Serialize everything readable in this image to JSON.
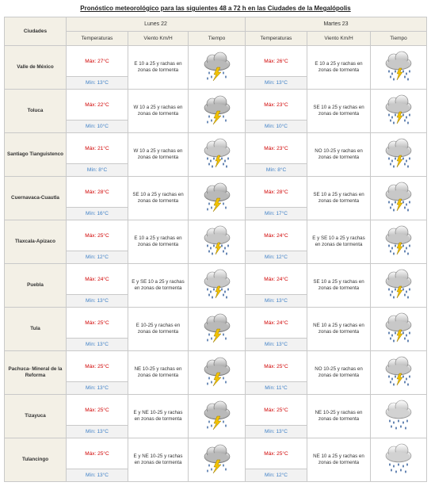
{
  "title": "Pronóstico meteorológico para las siguientes 48 a 72 h en las Ciudades de la Megalópolis",
  "header": {
    "cities_label": "Ciudades",
    "day1": "Lunes 22",
    "day2": "Martes 23",
    "col_temp": "Temperaturas",
    "col_wind": "Viento Km/H",
    "col_weather": "Tiempo"
  },
  "rows": [
    {
      "city": "Valle de México",
      "d1_max": "Máx: 27°C",
      "d1_min": "Mín: 13°C",
      "d1_wind": "E 10 a 25 y rachas en zonas de tormenta",
      "d1_icon": "thunderstorm-icon",
      "d2_max": "Máx: 26°C",
      "d2_min": "Mín: 13°C",
      "d2_wind": "E 10 a 25 y rachas en zonas de tormenta",
      "d2_icon": "rain-thunder-icon"
    },
    {
      "city": "Toluca",
      "d1_max": "Máx: 22°C",
      "d1_min": "Mín: 10°C",
      "d1_wind": "W 10 a 25 y rachas en zonas de tormenta",
      "d1_icon": "thunderstorm-icon",
      "d2_max": "Máx: 23°C",
      "d2_min": "Mín: 10°C",
      "d2_wind": "SE 10 a 25 y rachas en zonas de tormenta",
      "d2_icon": "rain-thunder-icon"
    },
    {
      "city": "Santiago Tianguistenco",
      "d1_max": "Máx: 21°C",
      "d1_min": "Mín: 8°C",
      "d1_wind": "W 10 a 25 y rachas en zonas de tormenta",
      "d1_icon": "rain-thunder-icon",
      "d2_max": "Máx: 23°C",
      "d2_min": "Mín: 8°C",
      "d2_wind": "NO 10-25 y rachas en zonas de tormenta",
      "d2_icon": "rain-thunder-icon"
    },
    {
      "city": "Cuernavaca-Cuautla",
      "d1_max": "Máx: 28°C",
      "d1_min": "Mín: 16°C",
      "d1_wind": "SE 10 a 25 y rachas en zonas de tormenta",
      "d1_icon": "thunderstorm-icon",
      "d2_max": "Máx: 28°C",
      "d2_min": "Mín: 17°C",
      "d2_wind": "SE 10 a 25 y rachas en zonas de tormenta",
      "d2_icon": "rain-thunder-icon"
    },
    {
      "city": "Tlaxcala-Apizaco",
      "d1_max": "Máx: 25°C",
      "d1_min": "Mín: 12°C",
      "d1_wind": "E 10 a 25 y rachas en zonas de tormenta",
      "d1_icon": "rain-thunder-icon",
      "d2_max": "Máx: 24°C",
      "d2_min": "Mín: 12°C",
      "d2_wind": "E y SE 10 a 25 y rachas en zonas de tormenta",
      "d2_icon": "rain-thunder-icon"
    },
    {
      "city": "Puebla",
      "d1_max": "Máx: 24°C",
      "d1_min": "Mín: 13°C",
      "d1_wind": "E y SE 10 a 25 y rachas en zonas de tormenta",
      "d1_icon": "rain-thunder-icon",
      "d2_max": "Máx: 24°C",
      "d2_min": "Mín: 13°C",
      "d2_wind": "SE 10 a 25 y rachas en zonas de tormenta",
      "d2_icon": "rain-thunder-icon"
    },
    {
      "city": "Tula",
      "d1_max": "Máx: 25°C",
      "d1_min": "Mín: 13°C",
      "d1_wind": "E 10-25 y rachas en zonas de tormenta",
      "d1_icon": "thunderstorm-icon",
      "d2_max": "Máx: 24°C",
      "d2_min": "Mín: 13°C",
      "d2_wind": "NE 10 a 25 y rachas en zonas de tormenta",
      "d2_icon": "rain-thunder-icon"
    },
    {
      "city": "Pachuca- Mineral de la Reforma",
      "d1_max": "Máx: 25°C",
      "d1_min": "Mín: 13°C",
      "d1_wind": "NE 10-25 y rachas en zonas de tormenta",
      "d1_icon": "thunderstorm-icon",
      "d2_max": "Máx: 25°C",
      "d2_min": "Mín: 11°C",
      "d2_wind": "NO 10-25 y rachas en zonas de tormenta",
      "d2_icon": "rain-thunder-icon"
    },
    {
      "city": "Tizayuca",
      "d1_max": "Máx: 25°C",
      "d1_min": "Mín: 13°C",
      "d1_wind": "E y NE 10-25 y rachas en zonas de tormenta",
      "d1_icon": "thunderstorm-icon",
      "d2_max": "Máx: 25°C",
      "d2_min": "Mín: 13°C",
      "d2_wind": "NE 10-25 y rachas en zonas de tormenta",
      "d2_icon": "rain-icon"
    },
    {
      "city": "Tulancingo",
      "d1_max": "Máx: 25°C",
      "d1_min": "Mín: 13°C",
      "d1_wind": "E y NE 10-25 y rachas en zonas de tormenta",
      "d1_icon": "thunderstorm-icon",
      "d2_max": "Máx: 25°C",
      "d2_min": "Mín: 12°C",
      "d2_wind": "NE 10 a 25 y rachas en zonas de tormenta",
      "d2_icon": "rain-icon"
    }
  ],
  "colors": {
    "max_temp": "#d00000",
    "min_temp": "#3d7fc6",
    "header_bg": "#f3f0e6",
    "bolt": "#f2c200"
  }
}
